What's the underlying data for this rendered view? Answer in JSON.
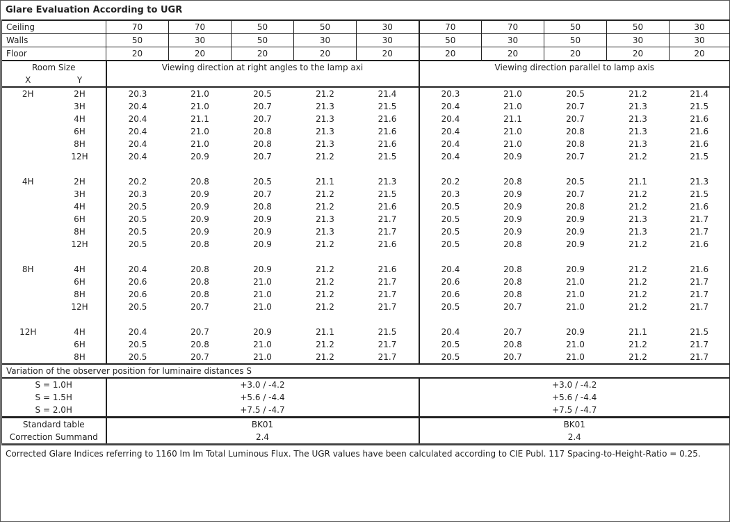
{
  "title": "Glare Evaluation According to UGR",
  "reflectance": {
    "ceiling": {
      "label": "Ceiling",
      "values": [
        "70",
        "70",
        "50",
        "50",
        "30",
        "70",
        "70",
        "50",
        "50",
        "30"
      ]
    },
    "walls": {
      "label": "Walls",
      "values": [
        "50",
        "30",
        "50",
        "30",
        "30",
        "50",
        "30",
        "50",
        "30",
        "30"
      ]
    },
    "floor": {
      "label": "Floor",
      "values": [
        "20",
        "20",
        "20",
        "20",
        "20",
        "20",
        "20",
        "20",
        "20",
        "20"
      ]
    }
  },
  "header": {
    "room_size": "Room Size",
    "x": "X",
    "y": "Y",
    "right_angles": "Viewing direction at right angles to the lamp axi",
    "parallel": "Viewing direction parallel to lamp axis"
  },
  "groups": [
    {
      "x": "2H",
      "rows": [
        {
          "y": "2H",
          "v": [
            "20.3",
            "21.0",
            "20.5",
            "21.2",
            "21.4",
            "20.3",
            "21.0",
            "20.5",
            "21.2",
            "21.4"
          ]
        },
        {
          "y": "3H",
          "v": [
            "20.4",
            "21.0",
            "20.7",
            "21.3",
            "21.5",
            "20.4",
            "21.0",
            "20.7",
            "21.3",
            "21.5"
          ]
        },
        {
          "y": "4H",
          "v": [
            "20.4",
            "21.1",
            "20.7",
            "21.3",
            "21.6",
            "20.4",
            "21.1",
            "20.7",
            "21.3",
            "21.6"
          ]
        },
        {
          "y": "6H",
          "v": [
            "20.4",
            "21.0",
            "20.8",
            "21.3",
            "21.6",
            "20.4",
            "21.0",
            "20.8",
            "21.3",
            "21.6"
          ]
        },
        {
          "y": "8H",
          "v": [
            "20.4",
            "21.0",
            "20.8",
            "21.3",
            "21.6",
            "20.4",
            "21.0",
            "20.8",
            "21.3",
            "21.6"
          ]
        },
        {
          "y": "12H",
          "v": [
            "20.4",
            "20.9",
            "20.7",
            "21.2",
            "21.5",
            "20.4",
            "20.9",
            "20.7",
            "21.2",
            "21.5"
          ]
        }
      ]
    },
    {
      "x": "4H",
      "rows": [
        {
          "y": "2H",
          "v": [
            "20.2",
            "20.8",
            "20.5",
            "21.1",
            "21.3",
            "20.2",
            "20.8",
            "20.5",
            "21.1",
            "21.3"
          ]
        },
        {
          "y": "3H",
          "v": [
            "20.3",
            "20.9",
            "20.7",
            "21.2",
            "21.5",
            "20.3",
            "20.9",
            "20.7",
            "21.2",
            "21.5"
          ]
        },
        {
          "y": "4H",
          "v": [
            "20.5",
            "20.9",
            "20.8",
            "21.2",
            "21.6",
            "20.5",
            "20.9",
            "20.8",
            "21.2",
            "21.6"
          ]
        },
        {
          "y": "6H",
          "v": [
            "20.5",
            "20.9",
            "20.9",
            "21.3",
            "21.7",
            "20.5",
            "20.9",
            "20.9",
            "21.3",
            "21.7"
          ]
        },
        {
          "y": "8H",
          "v": [
            "20.5",
            "20.9",
            "20.9",
            "21.3",
            "21.7",
            "20.5",
            "20.9",
            "20.9",
            "21.3",
            "21.7"
          ]
        },
        {
          "y": "12H",
          "v": [
            "20.5",
            "20.8",
            "20.9",
            "21.2",
            "21.6",
            "20.5",
            "20.8",
            "20.9",
            "21.2",
            "21.6"
          ]
        }
      ]
    },
    {
      "x": "8H",
      "rows": [
        {
          "y": "4H",
          "v": [
            "20.4",
            "20.8",
            "20.9",
            "21.2",
            "21.6",
            "20.4",
            "20.8",
            "20.9",
            "21.2",
            "21.6"
          ]
        },
        {
          "y": "6H",
          "v": [
            "20.6",
            "20.8",
            "21.0",
            "21.2",
            "21.7",
            "20.6",
            "20.8",
            "21.0",
            "21.2",
            "21.7"
          ]
        },
        {
          "y": "8H",
          "v": [
            "20.6",
            "20.8",
            "21.0",
            "21.2",
            "21.7",
            "20.6",
            "20.8",
            "21.0",
            "21.2",
            "21.7"
          ]
        },
        {
          "y": "12H",
          "v": [
            "20.5",
            "20.7",
            "21.0",
            "21.2",
            "21.7",
            "20.5",
            "20.7",
            "21.0",
            "21.2",
            "21.7"
          ]
        }
      ]
    },
    {
      "x": "12H",
      "rows": [
        {
          "y": "4H",
          "v": [
            "20.4",
            "20.7",
            "20.9",
            "21.1",
            "21.5",
            "20.4",
            "20.7",
            "20.9",
            "21.1",
            "21.5"
          ]
        },
        {
          "y": "6H",
          "v": [
            "20.5",
            "20.8",
            "21.0",
            "21.2",
            "21.7",
            "20.5",
            "20.8",
            "21.0",
            "21.2",
            "21.7"
          ]
        },
        {
          "y": "8H",
          "v": [
            "20.5",
            "20.7",
            "21.0",
            "21.2",
            "21.7",
            "20.5",
            "20.7",
            "21.0",
            "21.2",
            "21.7"
          ]
        }
      ]
    }
  ],
  "variation": {
    "label": "Variation of the observer position for luminaire distances S",
    "rows": [
      {
        "s": "S = 1.0H",
        "right": "+3.0 / -4.2",
        "parallel": "+3.0 / -4.2"
      },
      {
        "s": "S = 1.5H",
        "right": "+5.6 / -4.4",
        "parallel": "+5.6 / -4.4"
      },
      {
        "s": "S = 2.0H",
        "right": "+7.5 / -4.7",
        "parallel": "+7.5 / -4.7"
      }
    ]
  },
  "standard_table": {
    "label": "Standard table",
    "right": "BK01",
    "parallel": "BK01"
  },
  "correction_summand": {
    "label": "Correction Summand",
    "right": "2.4",
    "parallel": "2.4"
  },
  "footer": "Corrected Glare Indices referring to 1160 lm lm Total Luminous Flux. The UGR values have been calculated according to CIE Publ. 117    Spacing-to-Height-Ratio = 0.25."
}
